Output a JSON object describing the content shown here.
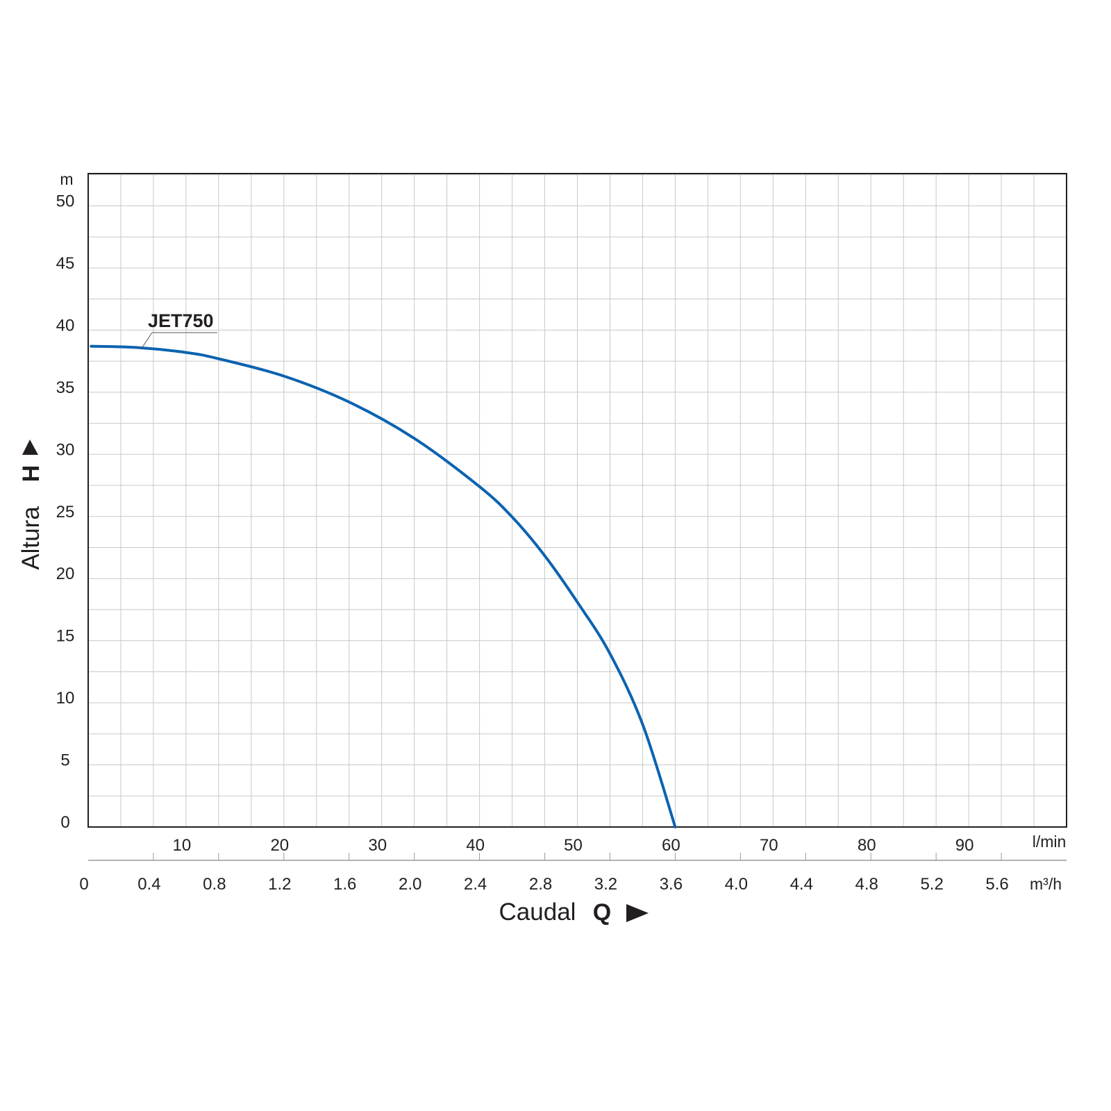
{
  "chart_data": {
    "type": "line",
    "title": "",
    "xlabel": "Caudal",
    "xlabel_symbol": "Q",
    "ylabel": "Altura",
    "ylabel_symbol": "H",
    "y_unit": "m",
    "x_unit_primary": "l/min",
    "x_unit_secondary": "m³/h",
    "xlim": [
      0,
      100
    ],
    "ylim": [
      0,
      52.6
    ],
    "grid": true,
    "y_ticks": [
      "0",
      "5",
      "10",
      "15",
      "20",
      "25",
      "30",
      "35",
      "40",
      "45",
      "50"
    ],
    "x_ticks_primary": [
      "10",
      "20",
      "30",
      "40",
      "50",
      "60",
      "70",
      "80",
      "90"
    ],
    "x_ticks_secondary": [
      "0",
      "0.4",
      "0.8",
      "1.2",
      "1.6",
      "2.0",
      "2.4",
      "2.8",
      "3.2",
      "3.6",
      "4.0",
      "4.4",
      "4.8",
      "5.2",
      "5.6"
    ],
    "series": [
      {
        "name": "JET750",
        "color": "#0b63b0",
        "x": [
          0.3,
          5,
          10,
          13.3,
          20,
          26.7,
          33.3,
          40,
          43.4,
          46.7,
          50,
          53.3,
          56.7,
          60
        ],
        "y": [
          38.7,
          38.6,
          38.2,
          37.7,
          36.3,
          34.2,
          31.3,
          27.4,
          24.9,
          21.8,
          18.1,
          14.0,
          8.2,
          0
        ]
      }
    ]
  }
}
